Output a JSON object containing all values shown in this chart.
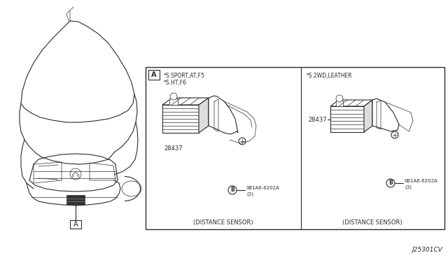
{
  "bg_color": "#ffffff",
  "line_color": "#2a2a2a",
  "figure_width": 6.4,
  "figure_height": 3.72,
  "dpi": 100,
  "title_code": "J25301CV",
  "box_left_label1": "*S.SPORT,AT,F5",
  "box_left_label2": "*S.HT,F6",
  "box_right_label": "*S.2WD,LEATHER",
  "part_number_left": "28437",
  "part_number_right": "28437",
  "bolt_label_line1": "081A6-6202A",
  "bolt_label_line2": "(3)",
  "caption_left": "(DISTANCE SENSOR)",
  "caption_right": "(DISTANCE SENSOR)",
  "box_A_label": "A",
  "box_B_label": "B"
}
